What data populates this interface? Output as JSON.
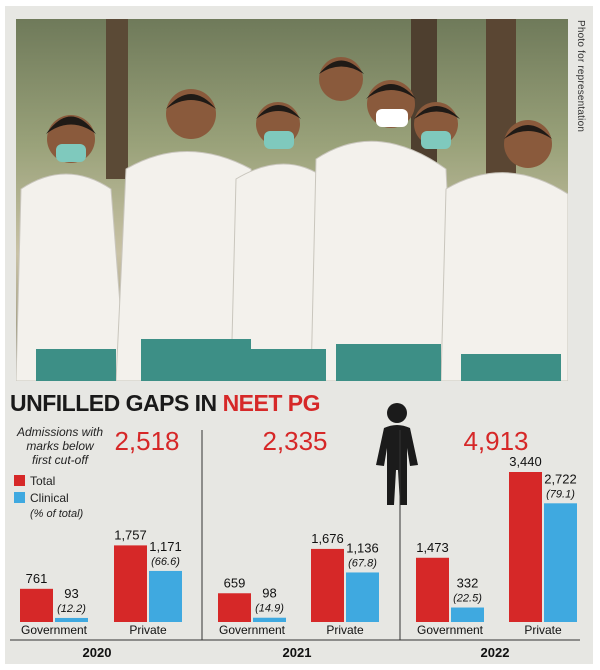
{
  "photo": {
    "credit": "Photo for representation"
  },
  "headline": {
    "part1": "UNFILLED GAPS IN ",
    "part2": "NEET PG"
  },
  "legend": {
    "admissions_caption": [
      "Admissions with",
      "marks below",
      "first cut-off"
    ],
    "total_label": "Total",
    "clinical_label": "Clinical",
    "clinical_note": "(% of total)",
    "total_color": "#d62828",
    "clinical_color": "#3fa9e0"
  },
  "chart_data": {
    "type": "bar",
    "years": [
      {
        "year": "2020",
        "admissions": "2,518",
        "groups": [
          {
            "category": "Government",
            "total": 761,
            "total_label": "761",
            "clinical": 93,
            "clinical_label": "93",
            "pct": "(12.2)"
          },
          {
            "category": "Private",
            "total": 1757,
            "total_label": "1,757",
            "clinical": 1171,
            "clinical_label": "1,171",
            "pct": "(66.6)"
          }
        ]
      },
      {
        "year": "2021",
        "admissions": "2,335",
        "groups": [
          {
            "category": "Government",
            "total": 659,
            "total_label": "659",
            "clinical": 98,
            "clinical_label": "98",
            "pct": "(14.9)"
          },
          {
            "category": "Private",
            "total": 1676,
            "total_label": "1,676",
            "clinical": 1136,
            "clinical_label": "1,136",
            "pct": "(67.8)"
          }
        ]
      },
      {
        "year": "2022",
        "admissions": "4,913",
        "groups": [
          {
            "category": "Government",
            "total": 1473,
            "total_label": "1,473",
            "clinical": 332,
            "clinical_label": "332",
            "pct": "(22.5)"
          },
          {
            "category": "Private",
            "total": 3440,
            "total_label": "3,440",
            "clinical": 2722,
            "clinical_label": "2,722",
            "pct": "(79.1)"
          }
        ]
      }
    ],
    "series": [
      {
        "name": "Total"
      },
      {
        "name": "Clinical"
      }
    ]
  }
}
